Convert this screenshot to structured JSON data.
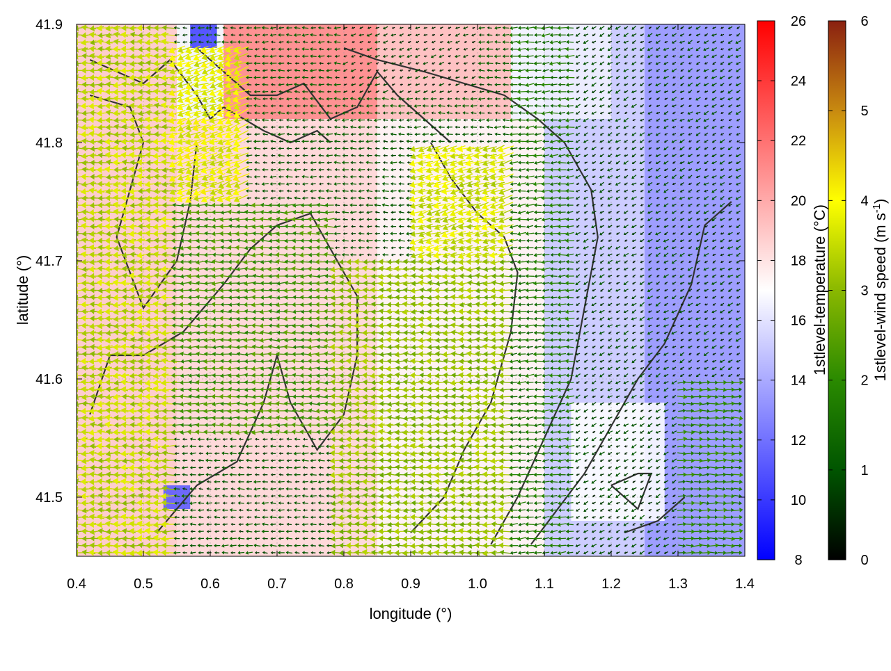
{
  "chart_data": {
    "type": "heatmap",
    "overlay": "wind-vector-field",
    "xlabel": "longitude (°)",
    "ylabel": "latitude (°)",
    "xlim": [
      0.4,
      1.4
    ],
    "ylim": [
      41.45,
      41.9
    ],
    "x_ticks": [
      "0.4",
      "0.5",
      "0.6",
      "0.7",
      "0.8",
      "0.9",
      "1.0",
      "1.1",
      "1.2",
      "1.3",
      "1.4"
    ],
    "y_ticks": [
      "41.5",
      "41.6",
      "41.7",
      "41.8",
      "41.9"
    ],
    "y_tick_values": [
      41.5,
      41.6,
      41.7,
      41.8,
      41.9
    ],
    "grid": true,
    "temperature_colorbar": {
      "label": "1stlevel-temperature (°C)",
      "range": [
        8,
        26
      ],
      "ticks": [
        "8",
        "10",
        "12",
        "14",
        "16",
        "18",
        "20",
        "22",
        "24",
        "26"
      ],
      "colors": [
        "#0000ff",
        "#ffffff",
        "#ff0000"
      ]
    },
    "wind_colorbar": {
      "label_main": "1stlevel-wind speed (m s",
      "label_sup": "-1",
      "label_end": ")",
      "range": [
        0,
        6
      ],
      "ticks": [
        "0",
        "1",
        "2",
        "3",
        "4",
        "5",
        "6"
      ],
      "colors": [
        "#000000",
        "#005500",
        "#2a8a00",
        "#8ab800",
        "#ffff00",
        "#c88a10",
        "#8a2010"
      ]
    },
    "temperature_regions": [
      {
        "x": [
          0.4,
          0.55
        ],
        "y": [
          41.45,
          41.9
        ],
        "t": 19.0
      },
      {
        "x": [
          0.55,
          0.85
        ],
        "y": [
          41.45,
          41.82
        ],
        "t": 18.5
      },
      {
        "x": [
          0.62,
          0.85
        ],
        "y": [
          41.82,
          41.9
        ],
        "t": 21.5
      },
      {
        "x": [
          0.85,
          1.05
        ],
        "y": [
          41.82,
          41.9
        ],
        "t": 19.5
      },
      {
        "x": [
          0.85,
          1.1
        ],
        "y": [
          41.45,
          41.82
        ],
        "t": 17.5
      },
      {
        "x": [
          1.1,
          1.25
        ],
        "y": [
          41.45,
          41.9
        ],
        "t": 15.0
      },
      {
        "x": [
          1.25,
          1.4
        ],
        "y": [
          41.45,
          41.9
        ],
        "t": 13.0
      },
      {
        "x": [
          1.14,
          1.28
        ],
        "y": [
          41.48,
          41.58
        ],
        "t": 17.0
      },
      {
        "x": [
          1.05,
          1.2
        ],
        "y": [
          41.82,
          41.9
        ],
        "t": 16.5
      },
      {
        "x": [
          0.57,
          0.61
        ],
        "y": [
          41.88,
          41.9
        ],
        "t": 10.0
      },
      {
        "x": [
          0.53,
          0.57
        ],
        "y": [
          41.49,
          41.51
        ],
        "t": 11.0
      }
    ],
    "wind_regions": [
      {
        "x": [
          0.4,
          0.55
        ],
        "y": [
          41.45,
          41.9
        ],
        "speed": 3.4,
        "direction_deg": 180
      },
      {
        "x": [
          0.55,
          0.65
        ],
        "y": [
          41.75,
          41.88
        ],
        "speed": 3.8,
        "direction_deg": 200
      },
      {
        "x": [
          0.55,
          0.78
        ],
        "y": [
          41.55,
          41.75
        ],
        "speed": 2.2,
        "direction_deg": 180
      },
      {
        "x": [
          0.78,
          1.05
        ],
        "y": [
          41.45,
          41.7
        ],
        "speed": 3.0,
        "direction_deg": 180
      },
      {
        "x": [
          0.9,
          1.05
        ],
        "y": [
          41.7,
          41.8
        ],
        "speed": 3.6,
        "direction_deg": 195
      },
      {
        "x": [
          0.8,
          1.0
        ],
        "y": [
          41.84,
          41.9
        ],
        "speed": 0.6,
        "direction_deg": 200
      },
      {
        "x": [
          1.05,
          1.15
        ],
        "y": [
          41.45,
          41.9
        ],
        "speed": 1.6,
        "direction_deg": 185
      },
      {
        "x": [
          1.15,
          1.4
        ],
        "y": [
          41.45,
          41.9
        ],
        "speed": 0.7,
        "direction_deg": 210
      },
      {
        "x": [
          1.3,
          1.4
        ],
        "y": [
          41.45,
          41.6
        ],
        "speed": 1.8,
        "direction_deg": 0
      }
    ],
    "contours": [
      [
        [
          0.42,
          41.87
        ],
        [
          0.5,
          41.85
        ],
        [
          0.54,
          41.87
        ],
        [
          0.58,
          41.84
        ],
        [
          0.6,
          41.82
        ],
        [
          0.62,
          41.83
        ],
        [
          0.68,
          41.81
        ],
        [
          0.72,
          41.8
        ],
        [
          0.76,
          41.81
        ],
        [
          0.78,
          41.8
        ]
      ],
      [
        [
          0.42,
          41.84
        ],
        [
          0.48,
          41.83
        ],
        [
          0.5,
          41.8
        ],
        [
          0.48,
          41.76
        ],
        [
          0.46,
          41.72
        ],
        [
          0.5,
          41.66
        ],
        [
          0.55,
          41.7
        ],
        [
          0.57,
          41.75
        ],
        [
          0.58,
          41.8
        ]
      ],
      [
        [
          0.42,
          41.57
        ],
        [
          0.45,
          41.62
        ],
        [
          0.5,
          41.62
        ],
        [
          0.56,
          41.64
        ],
        [
          0.62,
          41.68
        ],
        [
          0.66,
          41.71
        ],
        [
          0.7,
          41.73
        ],
        [
          0.75,
          41.74
        ],
        [
          0.78,
          41.71
        ],
        [
          0.82,
          41.67
        ],
        [
          0.82,
          41.62
        ],
        [
          0.8,
          41.57
        ],
        [
          0.76,
          41.54
        ],
        [
          0.72,
          41.58
        ],
        [
          0.7,
          41.62
        ],
        [
          0.68,
          41.58
        ],
        [
          0.64,
          41.53
        ],
        [
          0.58,
          41.51
        ],
        [
          0.52,
          41.47
        ]
      ],
      [
        [
          0.58,
          41.88
        ],
        [
          0.62,
          41.86
        ],
        [
          0.66,
          41.84
        ],
        [
          0.7,
          41.84
        ],
        [
          0.74,
          41.85
        ],
        [
          0.78,
          41.82
        ],
        [
          0.82,
          41.83
        ],
        [
          0.85,
          41.86
        ],
        [
          0.88,
          41.84
        ],
        [
          0.92,
          41.82
        ],
        [
          0.96,
          41.8
        ]
      ],
      [
        [
          0.8,
          41.88
        ],
        [
          0.85,
          41.87
        ],
        [
          0.92,
          41.86
        ],
        [
          0.98,
          41.85
        ],
        [
          1.04,
          41.84
        ],
        [
          1.09,
          41.82
        ],
        [
          1.13,
          41.8
        ],
        [
          1.17,
          41.76
        ],
        [
          1.18,
          41.72
        ],
        [
          1.16,
          41.66
        ],
        [
          1.14,
          41.6
        ],
        [
          1.1,
          41.55
        ],
        [
          1.06,
          41.5
        ],
        [
          1.02,
          41.46
        ]
      ],
      [
        [
          0.93,
          41.8
        ],
        [
          0.96,
          41.77
        ],
        [
          1.0,
          41.74
        ],
        [
          1.04,
          41.72
        ],
        [
          1.06,
          41.69
        ],
        [
          1.05,
          41.64
        ],
        [
          1.02,
          41.58
        ],
        [
          0.98,
          41.54
        ],
        [
          0.95,
          41.5
        ],
        [
          0.9,
          41.47
        ]
      ],
      [
        [
          1.38,
          41.75
        ],
        [
          1.34,
          41.73
        ],
        [
          1.32,
          41.68
        ],
        [
          1.28,
          41.63
        ],
        [
          1.24,
          41.6
        ],
        [
          1.2,
          41.56
        ],
        [
          1.16,
          41.52
        ],
        [
          1.12,
          41.49
        ],
        [
          1.08,
          41.46
        ]
      ],
      [
        [
          1.22,
          41.47
        ],
        [
          1.27,
          41.48
        ],
        [
          1.31,
          41.5
        ]
      ],
      [
        [
          1.2,
          41.51
        ],
        [
          1.24,
          41.52
        ],
        [
          1.26,
          41.52
        ],
        [
          1.24,
          41.49
        ],
        [
          1.2,
          41.51
        ]
      ]
    ]
  }
}
